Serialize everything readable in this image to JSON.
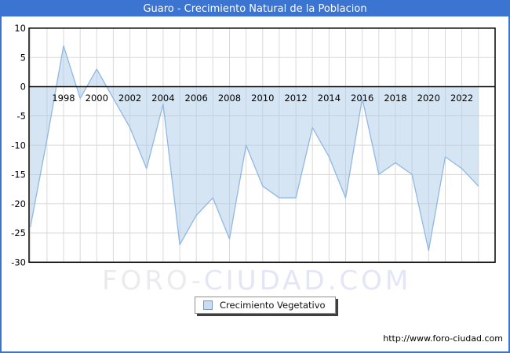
{
  "window": {
    "title": "Guaro - Crecimiento Natural de la Poblacion"
  },
  "colors": {
    "frame_border": "#3b74d1",
    "titlebar_bg": "#3b74d1",
    "title_text": "#ffffff",
    "grid": "#d9d9d9",
    "axis": "#000000",
    "line": "#90b8e2",
    "fill": "#aecbe8",
    "legend_swatch_fill": "#c8ddf4",
    "legend_swatch_border": "#7b96b8",
    "watermark_part1_color": "#ebebee",
    "watermark_part2_color": "#e2e6f6"
  },
  "chart_data": {
    "type": "area",
    "title": "Guaro - Crecimiento Natural de la Poblacion",
    "x": [
      1996,
      1997,
      1998,
      1999,
      2000,
      2001,
      2002,
      2003,
      2004,
      2005,
      2006,
      2007,
      2008,
      2009,
      2010,
      2011,
      2012,
      2013,
      2014,
      2015,
      2016,
      2017,
      2018,
      2019,
      2020,
      2021,
      2022,
      2023
    ],
    "series": [
      {
        "name": "Crecimiento Vegetativo",
        "values": [
          -24,
          -9,
          7,
          -2,
          3,
          -2,
          -7,
          -14,
          -3,
          -27,
          -22,
          -19,
          -26,
          -10,
          -17,
          -19,
          -19,
          -7,
          -12,
          -19,
          -2,
          -15,
          -13,
          -15,
          -28,
          -12,
          -14,
          -17
        ]
      }
    ],
    "xlabel": "",
    "ylabel": "",
    "ylim": [
      -30,
      10
    ],
    "xlim": [
      1996,
      2024
    ],
    "y_ticks": [
      10,
      5,
      0,
      -5,
      -10,
      -15,
      -20,
      -25,
      -30
    ],
    "x_ticks": [
      1998,
      2000,
      2002,
      2004,
      2006,
      2008,
      2010,
      2012,
      2014,
      2016,
      2018,
      2020,
      2022
    ],
    "grid": true,
    "baseline": 0,
    "legend_position": "bottom-center"
  },
  "legend": {
    "label": "Crecimiento Vegetativo"
  },
  "watermark": {
    "part1": "FORO-",
    "part2": "CIUDAD.COM"
  },
  "footer": {
    "url": "http://www.foro-ciudad.com"
  }
}
